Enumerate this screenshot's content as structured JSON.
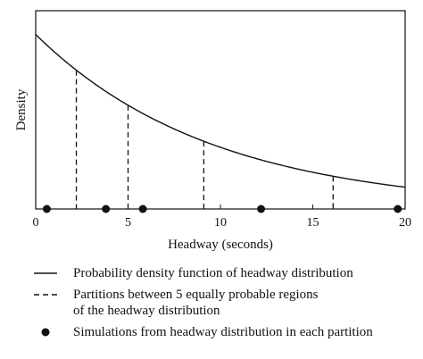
{
  "chart_data": {
    "type": "line",
    "title": "",
    "xlabel": "Headway (seconds)",
    "ylabel": "Density",
    "xlim": [
      0,
      20
    ],
    "x_ticks": [
      0,
      5,
      10,
      15,
      20
    ],
    "y_ticks_shown": false,
    "density_curve": {
      "x": [
        0,
        2.2,
        5.0,
        9.1,
        16.1,
        20.0
      ],
      "y": [
        0.88,
        0.7,
        0.53,
        0.36,
        0.18,
        0.11
      ]
    },
    "partition_lines_x": [
      2.2,
      5.0,
      9.1,
      16.1
    ],
    "simulation_points_x": [
      0.6,
      3.8,
      5.8,
      12.2,
      19.6
    ]
  },
  "legend": [
    {
      "symbol": "solid-line",
      "label": "Probability density function of headway distribution"
    },
    {
      "symbol": "dashed-line",
      "label_line1": "Partitions between 5 equally probable regions",
      "label_line2": "of the headway distribution"
    },
    {
      "symbol": "dot",
      "label": "Simulations from headway distribution in each partition"
    }
  ]
}
